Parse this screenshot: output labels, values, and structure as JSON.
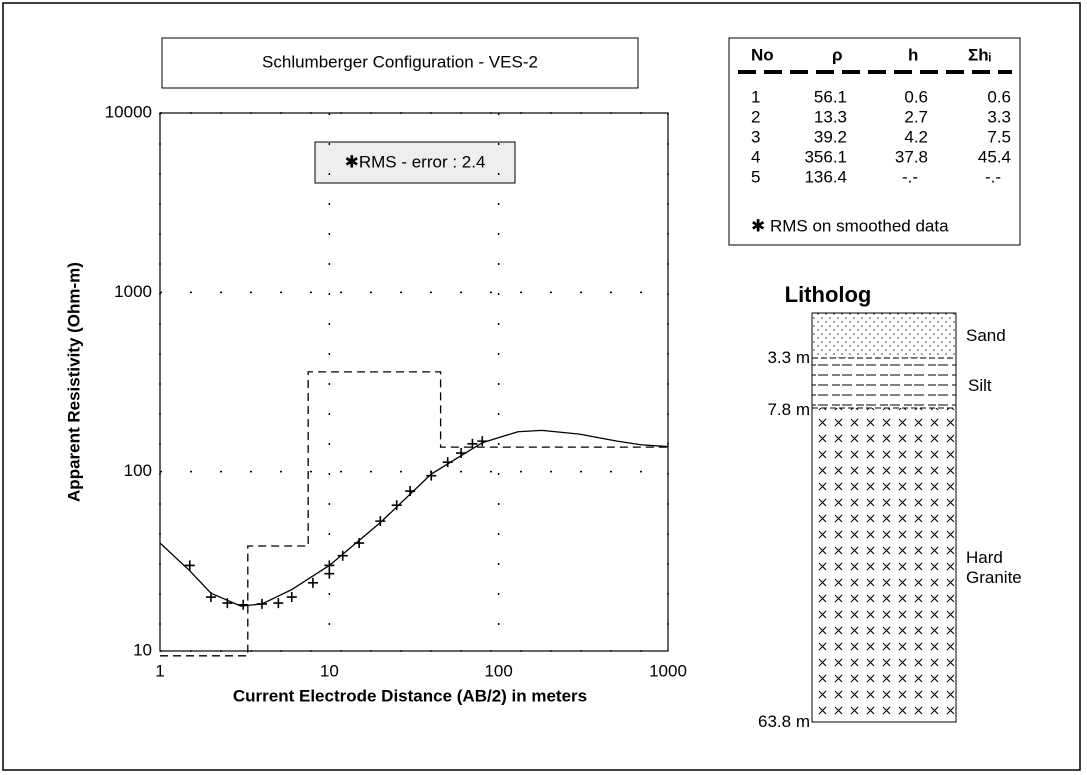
{
  "chart_data": {
    "type": "line",
    "title": "Schlumberger Configuration - VES-2",
    "annotation": "✱RMS - error : 2.4",
    "x_label": "Current Electrode Distance (AB/2) in meters",
    "y_label": "Apparent Resistivity (Ohm-m)",
    "xscale": "log",
    "yscale": "log",
    "xlim": [
      1,
      1000
    ],
    "ylim": [
      10,
      10000
    ],
    "xticks": [
      1,
      10,
      100,
      1000
    ],
    "yticks": [
      10,
      100,
      1000,
      10000
    ],
    "grid": true,
    "series": [
      {
        "style": "markers",
        "color": "#000000",
        "x": [
          1.5,
          2,
          2.5,
          3.1,
          4,
          5,
          6,
          8,
          10,
          10,
          12,
          15,
          20,
          25,
          30,
          40,
          50,
          60,
          70,
          80
        ],
        "values": [
          30,
          20,
          18.5,
          18.1,
          18.3,
          18.5,
          20,
          24,
          27,
          30,
          34,
          40,
          53,
          65,
          78,
          95,
          113,
          127,
          143,
          148
        ]
      },
      {
        "style": "line",
        "color": "#000000",
        "x": [
          1,
          1.5,
          2,
          3,
          4,
          6,
          10,
          20,
          40,
          80,
          130,
          180,
          300,
          500,
          700,
          1000
        ],
        "values": [
          40,
          28,
          21,
          17.8,
          18.3,
          22,
          30,
          52,
          97,
          145,
          167,
          170,
          162,
          148,
          141,
          138
        ]
      },
      {
        "style": "dashed",
        "color": "#000000",
        "x": [
          1,
          3.3,
          3.3,
          7.5,
          7.5,
          45.4,
          45.4,
          1000
        ],
        "values": [
          9.4,
          9.4,
          38.5,
          38.5,
          360,
          360,
          137,
          137
        ]
      }
    ]
  },
  "table": {
    "header": [
      "No",
      "ρ",
      "h",
      "Σhᵢ"
    ],
    "rows": [
      [
        "1",
        "56.1",
        "0.6",
        "0.6"
      ],
      [
        "2",
        "13.3",
        "2.7",
        "3.3"
      ],
      [
        "3",
        "39.2",
        "4.2",
        "7.5"
      ],
      [
        "4",
        "356.1",
        "37.8",
        "45.4"
      ],
      [
        "5",
        "136.4",
        "-.-",
        "-.-"
      ]
    ],
    "footnote": "✱ RMS on smoothed data"
  },
  "litholog": {
    "title": "Litholog",
    "layers": [
      {
        "label": "Sand",
        "depth": "3.3 m"
      },
      {
        "label": "Silt",
        "depth": "7.8 m"
      },
      {
        "label": "Hard Granite",
        "depth": "63.8 m"
      }
    ]
  }
}
